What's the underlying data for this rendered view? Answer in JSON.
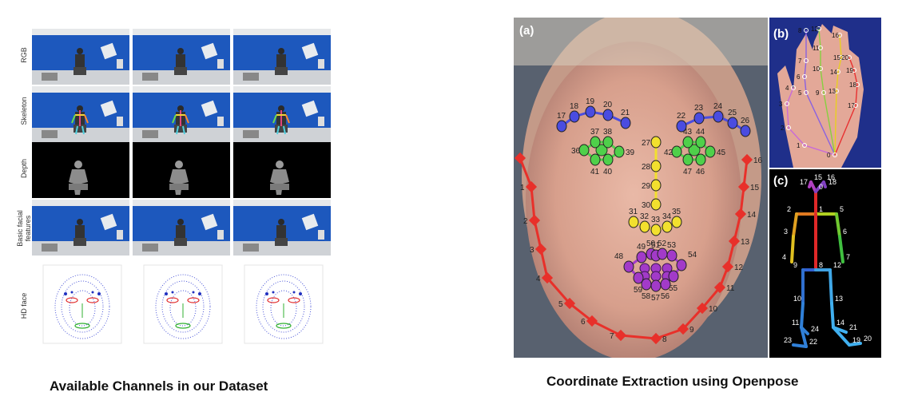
{
  "left": {
    "row_labels": [
      "RGB",
      "Skeleton",
      "Depth",
      "Basic facial\nfeatures",
      "HD face"
    ],
    "caption": "Available Channels in our Dataset"
  },
  "right": {
    "panel_labels": [
      "(a)",
      "(b)",
      "(c)"
    ],
    "caption": "Coordinate Extraction using Openpose",
    "face_point_labels": [
      "0",
      "1",
      "2",
      "3",
      "4",
      "5",
      "6",
      "7",
      "8",
      "9",
      "10",
      "11",
      "12",
      "13",
      "14",
      "15",
      "16",
      "17",
      "18",
      "19",
      "20",
      "21",
      "22",
      "23",
      "24",
      "25",
      "26",
      "27",
      "28",
      "29",
      "30",
      "31",
      "32",
      "33",
      "34",
      "35",
      "36",
      "37",
      "38",
      "39",
      "40",
      "41",
      "42",
      "43",
      "44",
      "45",
      "46",
      "47",
      "48",
      "49",
      "50",
      "51",
      "52",
      "53",
      "54",
      "55",
      "56",
      "57",
      "58",
      "59"
    ],
    "hand_point_labels": [
      "0",
      "1",
      "2",
      "3",
      "4",
      "5",
      "6",
      "7",
      "8",
      "9",
      "10",
      "11",
      "12",
      "13",
      "14",
      "15",
      "16",
      "17",
      "18",
      "19",
      "20"
    ],
    "body_point_labels": [
      "0",
      "1",
      "2",
      "3",
      "4",
      "5",
      "6",
      "7",
      "8",
      "9",
      "10",
      "11",
      "12",
      "13",
      "14",
      "15",
      "16",
      "17",
      "18",
      "19",
      "20",
      "21",
      "22",
      "23",
      "24"
    ]
  },
  "colors": {
    "jaw": "#e8302a",
    "brow": "#4a4ce0",
    "eye": "#4fd04a",
    "nose": "#f2e02e",
    "mouth": "#a23ac8",
    "studio_blue": "#1b55b8"
  }
}
